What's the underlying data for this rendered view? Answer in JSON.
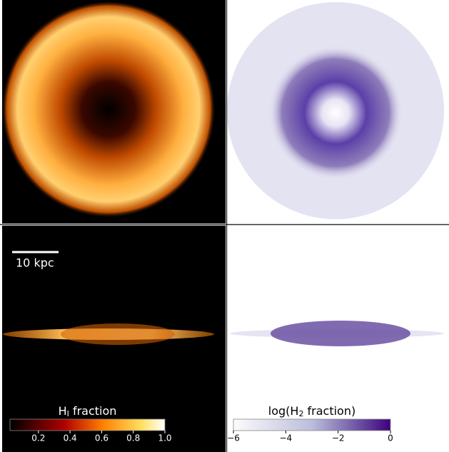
{
  "scale_bar": {
    "label": "10 kpc"
  },
  "colorbars": [
    {
      "label": {
        "prefix": "H",
        "sub": "I",
        "suffix": " fraction"
      },
      "lim": [
        0.02,
        1.0
      ],
      "ticks": [
        0.2,
        0.4,
        0.6,
        0.8,
        {
          "value": 1,
          "label": "1.0"
        }
      ]
    },
    {
      "label": {
        "prefix": "log(H",
        "sub": "2",
        "suffix": " fraction)"
      },
      "lim": [
        -6,
        0
      ],
      "ticks": [
        {
          "value": -6,
          "label": "−6"
        },
        {
          "value": -4,
          "label": "−4"
        },
        {
          "value": -2,
          "label": "−2"
        },
        0
      ]
    }
  ]
}
